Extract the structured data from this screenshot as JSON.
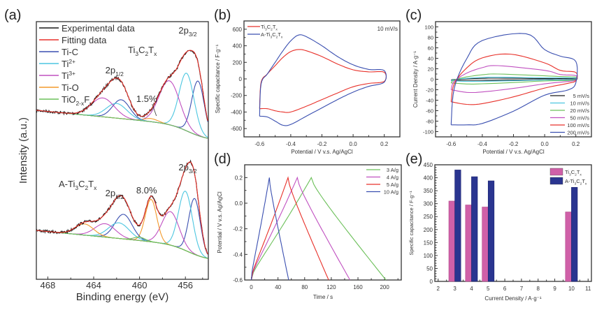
{
  "figure": {
    "panel_labels": [
      "(a)",
      "(b)",
      "(c)",
      "(d)",
      "(e)"
    ]
  },
  "chart_data": [
    {
      "id": "a",
      "type": "line",
      "title": "",
      "xlabel": "Binding energy (eV)",
      "ylabel": "Intensity (a.u.)",
      "xlim": [
        469,
        454
      ],
      "xticks": [
        468,
        464,
        460,
        456
      ],
      "x_reversed": true,
      "legend": [
        {
          "name": "Experimental  data",
          "color": "#1a1a1a"
        },
        {
          "name": "Fitting data",
          "color": "#e8312a"
        },
        {
          "name": "Ti-C",
          "color": "#3a4fb0"
        },
        {
          "name": "Ti2+",
          "color": "#4cc6e0"
        },
        {
          "name": "Ti3+",
          "color": "#c050c0"
        },
        {
          "name": "Ti-O",
          "color": "#f39a2c"
        },
        {
          "name": "TiO2-xFx",
          "color": "#6cc05a"
        }
      ],
      "legend_placement": "top-left",
      "spectra": [
        {
          "name": "Ti3C2Tx",
          "label_main": "Ti3C2Tx",
          "annotations": [
            {
              "text": "2p3/2",
              "x": 455.8
            },
            {
              "text": "2p1/2",
              "x": 461.7
            },
            {
              "text": "1.5%",
              "x": 459.2
            }
          ],
          "components": [
            {
              "name": "Ti-C",
              "center": 454.9,
              "height": 0.52,
              "width": 0.55
            },
            {
              "name": "Ti2+",
              "center": 455.9,
              "height": 0.55,
              "width": 0.65
            },
            {
              "name": "Ti3+",
              "center": 457.4,
              "height": 0.42,
              "width": 0.9
            },
            {
              "name": "Ti-O",
              "center": 459.0,
              "height": 0.03,
              "width": 0.6
            },
            {
              "name": "Ti-C",
              "center": 461.6,
              "height": 0.18,
              "width": 0.75
            },
            {
              "name": "Ti2+",
              "center": 462.0,
              "height": 0.14,
              "width": 0.9
            },
            {
              "name": "Ti3+",
              "center": 463.2,
              "height": 0.18,
              "width": 1.0
            }
          ]
        },
        {
          "name": "A-Ti3C2Tx",
          "label_main": "A-Ti3C2Tx",
          "annotations": [
            {
              "text": "2p3/2",
              "x": 455.8
            },
            {
              "text": "2p1/2",
              "x": 461.7
            },
            {
              "text": "8.0%",
              "x": 459.2
            }
          ],
          "components": [
            {
              "name": "Ti-C",
              "center": 455.2,
              "height": 0.5,
              "width": 0.5
            },
            {
              "name": "Ti2+",
              "center": 456.0,
              "height": 0.53,
              "width": 0.6
            },
            {
              "name": "Ti3+",
              "center": 457.3,
              "height": 0.3,
              "width": 0.75
            },
            {
              "name": "Ti-O",
              "center": 459.0,
              "height": 0.38,
              "width": 0.5
            },
            {
              "name": "Ti-C",
              "center": 461.4,
              "height": 0.22,
              "width": 0.75
            },
            {
              "name": "Ti2+",
              "center": 461.8,
              "height": 0.14,
              "width": 0.9
            },
            {
              "name": "Ti3+",
              "center": 463.0,
              "height": 0.12,
              "width": 0.9
            },
            {
              "name": "Ti-O",
              "center": 464.8,
              "height": 0.1,
              "width": 0.8
            },
            {
              "name": "TiO2-xFx",
              "center": 460.0,
              "height": 0.03,
              "width": 0.5
            }
          ]
        }
      ]
    },
    {
      "id": "b",
      "type": "line",
      "title": "",
      "xlabel": "Potential / V v.s. Ag/AgCl",
      "ylabel": "Specific capacitance / F·g⁻¹",
      "xlim": [
        -0.7,
        0.3
      ],
      "ylim": [
        -700,
        700
      ],
      "xticks": [
        -0.6,
        -0.4,
        -0.2,
        0.0,
        0.2
      ],
      "xtick_labels": [
        "-0.6",
        "-0.4",
        "-0.2",
        "0.0",
        "0.2"
      ],
      "yticks": [
        -600,
        -400,
        -200,
        0,
        200,
        400,
        600
      ],
      "annotation": "10 mV/s",
      "legend_placement": "top-left",
      "series": [
        {
          "name": "Ti3C2Tx",
          "color": "#e8312a",
          "anodic": [
            [
              -0.6,
              -360
            ],
            [
              -0.59,
              -40
            ],
            [
              -0.55,
              60
            ],
            [
              -0.5,
              160
            ],
            [
              -0.45,
              260
            ],
            [
              -0.4,
              330
            ],
            [
              -0.35,
              355
            ],
            [
              -0.3,
              340
            ],
            [
              -0.2,
              270
            ],
            [
              -0.1,
              180
            ],
            [
              0.0,
              110
            ],
            [
              0.1,
              85
            ],
            [
              0.2,
              80
            ]
          ],
          "cathodic": [
            [
              0.2,
              80
            ],
            [
              0.2,
              -30
            ],
            [
              0.1,
              -55
            ],
            [
              0.0,
              -95
            ],
            [
              -0.1,
              -170
            ],
            [
              -0.2,
              -250
            ],
            [
              -0.3,
              -330
            ],
            [
              -0.4,
              -400
            ],
            [
              -0.45,
              -400
            ],
            [
              -0.5,
              -385
            ],
            [
              -0.55,
              -360
            ],
            [
              -0.6,
              -360
            ]
          ]
        },
        {
          "name": "A-Ti3C2Tx",
          "color": "#3a4fb0",
          "anodic": [
            [
              -0.6,
              -450
            ],
            [
              -0.59,
              -60
            ],
            [
              -0.55,
              60
            ],
            [
              -0.5,
              200
            ],
            [
              -0.45,
              340
            ],
            [
              -0.4,
              460
            ],
            [
              -0.35,
              530
            ],
            [
              -0.3,
              510
            ],
            [
              -0.2,
              400
            ],
            [
              -0.1,
              270
            ],
            [
              0.0,
              170
            ],
            [
              0.1,
              115
            ],
            [
              0.2,
              100
            ]
          ],
          "cathodic": [
            [
              0.2,
              100
            ],
            [
              0.2,
              -40
            ],
            [
              0.1,
              -90
            ],
            [
              0.0,
              -160
            ],
            [
              -0.1,
              -250
            ],
            [
              -0.2,
              -350
            ],
            [
              -0.3,
              -450
            ],
            [
              -0.4,
              -550
            ],
            [
              -0.45,
              -560
            ],
            [
              -0.5,
              -510
            ],
            [
              -0.55,
              -460
            ],
            [
              -0.6,
              -450
            ]
          ]
        }
      ]
    },
    {
      "id": "c",
      "type": "line",
      "title": "",
      "xlabel": "Potential / V v.s. Ag/AgCl",
      "ylabel": "Current Density / A·g⁻¹",
      "xlim": [
        -0.7,
        0.3
      ],
      "ylim": [
        -110,
        110
      ],
      "xticks": [
        -0.6,
        -0.4,
        -0.2,
        0.0,
        0.2
      ],
      "xtick_labels": [
        "-0.6",
        "-0.4",
        "-0.2",
        "0.0",
        "0.2"
      ],
      "yticks": [
        -100,
        -80,
        -60,
        -40,
        -20,
        0,
        20,
        40,
        60,
        80,
        100
      ],
      "legend_placement": "bottom-right",
      "series": [
        {
          "name": "5 mV/s",
          "color": "#1a1a1a",
          "peak_anodic": 2,
          "peak_cathodic": -2,
          "end_anodic": 1,
          "start": -1.5
        },
        {
          "name": "10 mV/s",
          "color": "#4cc6e0",
          "peak_anodic": 4,
          "peak_cathodic": -4,
          "end_anodic": 2,
          "start": -3
        },
        {
          "name": "20 mV/s",
          "color": "#6cc05a",
          "peak_anodic": 10,
          "peak_cathodic": -9,
          "end_anodic": 4,
          "start": -7
        },
        {
          "name": "50 mV/s",
          "color": "#c050c0",
          "peak_anodic": 26,
          "peak_cathodic": -25,
          "end_anodic": 7,
          "start": -20
        },
        {
          "name": "100 mV/s",
          "color": "#e8312a",
          "peak_anodic": 48,
          "peak_cathodic": -48,
          "end_anodic": 13,
          "start": -43
        },
        {
          "name": "200 mV/s",
          "color": "#3a4fb0",
          "peak_anodic": 87,
          "peak_cathodic": -87,
          "end_anodic": 34,
          "start": -87
        }
      ]
    },
    {
      "id": "d",
      "type": "line",
      "title": "",
      "xlabel": "Time / s",
      "ylabel": "Potential / V v.s. Ag/AgCl",
      "xlim": [
        -10,
        225
      ],
      "ylim": [
        -0.6,
        0.3
      ],
      "xticks": [
        0,
        40,
        80,
        120,
        160,
        200
      ],
      "yticks": [
        -0.6,
        -0.4,
        -0.2,
        0.0,
        0.2
      ],
      "ytick_labels": [
        "-0.6",
        "-0.4",
        "-0.2",
        "0.0",
        "0.2"
      ],
      "legend_placement": "top-right",
      "series": [
        {
          "name": "3 A/g",
          "color": "#6cc05a",
          "t_peak": 90,
          "t_end": 202
        },
        {
          "name": "4 A/g",
          "color": "#c050c0",
          "t_peak": 69,
          "t_end": 148
        },
        {
          "name": "5 A/g",
          "color": "#e8312a",
          "t_peak": 55,
          "t_end": 116
        },
        {
          "name": "10 A/g",
          "color": "#3a4fb0",
          "t_peak": 27,
          "t_end": 56
        }
      ]
    },
    {
      "id": "e",
      "type": "bar",
      "title": "",
      "xlabel": "Current Density / A·g⁻¹",
      "ylabel": "Specific capacitance / F·g⁻¹",
      "xlim": [
        1.8,
        11.2
      ],
      "ylim": [
        0,
        450
      ],
      "xticks": [
        2,
        3,
        4,
        5,
        6,
        7,
        8,
        9,
        10,
        11
      ],
      "yticks": [
        0,
        50,
        100,
        150,
        200,
        250,
        300,
        350,
        400,
        450
      ],
      "categories": [
        3,
        4,
        5,
        10
      ],
      "legend_placement": "top-right",
      "series": [
        {
          "name": "Ti3C2Tx",
          "color": "#d060a8",
          "values": [
            310,
            295,
            287,
            268
          ]
        },
        {
          "name": "A-Ti3C2Tx",
          "color": "#2a3590",
          "values": [
            430,
            404,
            388,
            363
          ]
        }
      ]
    }
  ]
}
